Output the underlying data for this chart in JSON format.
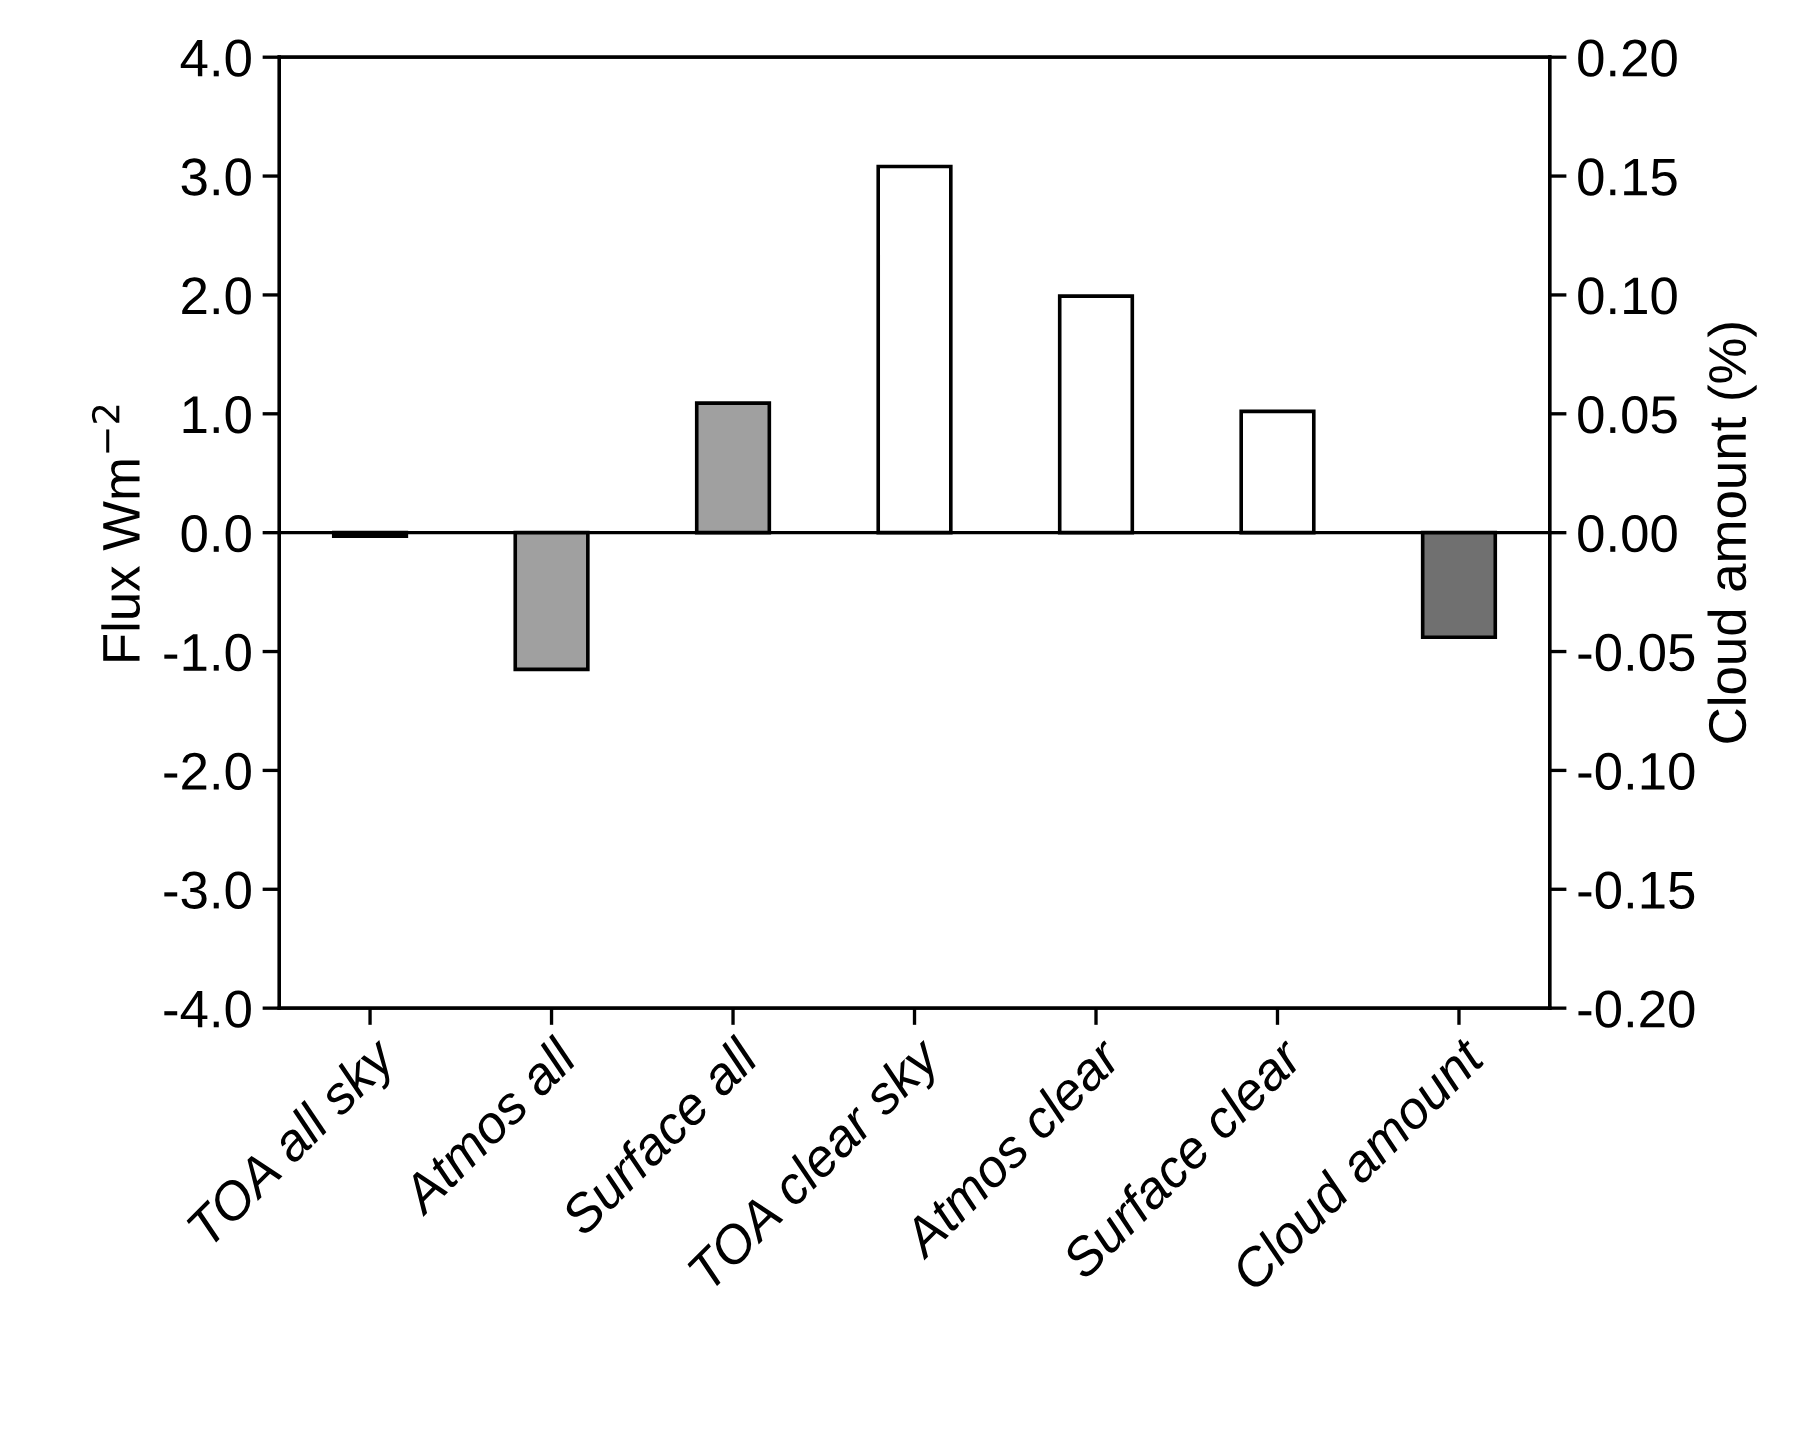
{
  "chart_data": {
    "type": "bar",
    "ylabel": "Flux Wm$^{−2}$",
    "y2label": "Cloud amount (%)",
    "categories": [
      "TOA all sky",
      "Atmos all",
      "Surface all",
      "TOA clear sky",
      "Atmos clear",
      "Surface clear",
      "Cloud amount"
    ],
    "series": [
      {
        "values": [
          -0.03,
          -1.15,
          1.09,
          3.08,
          1.99,
          1.02,
          null
        ],
        "colors": [
          "#a0a0a0",
          "#a0a0a0",
          "#a0a0a0",
          "#ffffff",
          "#ffffff",
          "#ffffff",
          null
        ]
      },
      {
        "axis": "y2",
        "values": [
          null,
          null,
          null,
          null,
          null,
          null,
          -0.044
        ],
        "colors": [
          null,
          null,
          null,
          null,
          null,
          null,
          "#707070"
        ]
      }
    ],
    "ylim": [
      -4,
      4
    ],
    "yticks": [
      {
        "value": -4,
        "label": "-4.0"
      },
      {
        "value": -3,
        "label": "-3.0"
      },
      {
        "value": -2,
        "label": "-2.0"
      },
      {
        "value": -1,
        "label": "-1.0"
      },
      {
        "value": 0,
        "label": "0.0"
      },
      {
        "value": 1,
        "label": "1.0"
      },
      {
        "value": 2,
        "label": "2.0"
      },
      {
        "value": 3,
        "label": "3.0"
      },
      {
        "value": 4,
        "label": "4.0"
      }
    ],
    "y2lim": [
      -0.2,
      0.2
    ],
    "y2ticks": [
      {
        "value": -0.2,
        "label": "-0.20"
      },
      {
        "value": -0.15,
        "label": "-0.15"
      },
      {
        "value": -0.1,
        "label": "-0.10"
      },
      {
        "value": -0.05,
        "label": "-0.05"
      },
      {
        "value": 0,
        "label": "0.00"
      },
      {
        "value": 0.05,
        "label": "0.05"
      },
      {
        "value": 0.1,
        "label": "0.10"
      },
      {
        "value": 0.15,
        "label": "0.15"
      },
      {
        "value": 0.2,
        "label": "0.20"
      }
    ],
    "ref_lines": [
      {
        "axis": "y",
        "value": 0,
        "color": "#000000"
      }
    ],
    "grid": false,
    "legend": false
  }
}
